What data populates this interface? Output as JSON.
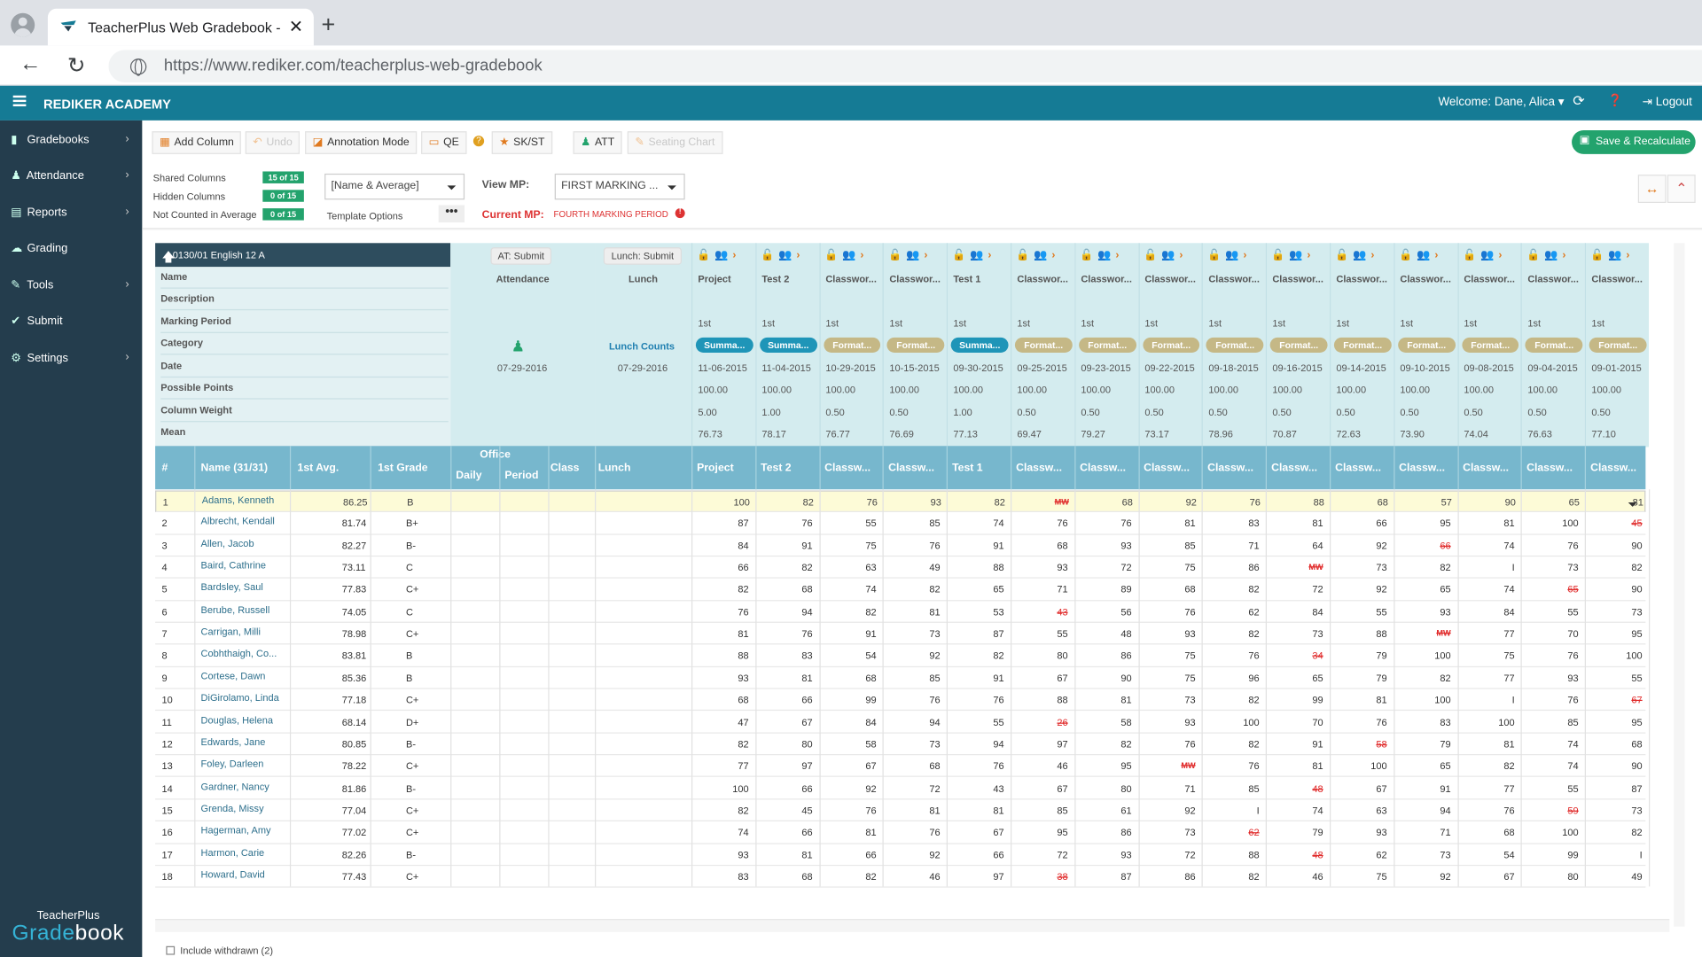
{
  "browser": {
    "tab_title": "TeacherPlus Web Gradebook - O",
    "url_host": "https://www.rediker.com",
    "url_path": "/teacherplus-web-gradebook"
  },
  "header": {
    "brand": "REDIKER ACADEMY",
    "welcome": "Welcome: Dane, Alica",
    "logout": "Logout"
  },
  "sidebar": {
    "items": [
      {
        "label": "Gradebooks",
        "icon": "book-icon"
      },
      {
        "label": "Attendance",
        "icon": "person-icon"
      },
      {
        "label": "Reports",
        "icon": "document-icon"
      },
      {
        "label": "Grading",
        "icon": "cloud-icon"
      },
      {
        "label": "Tools",
        "icon": "wrench-icon"
      },
      {
        "label": "Submit",
        "icon": "check-circle-icon"
      },
      {
        "label": "Settings",
        "icon": "gear-icon"
      }
    ],
    "logo_top": "TeacherPlus",
    "logo_bottom_a": "Grade",
    "logo_bottom_b": "book"
  },
  "toolbar": {
    "add_column": "Add Column",
    "undo": "Undo",
    "annotation": "Annotation Mode",
    "qe": "QE",
    "skst": "SK/ST",
    "att": "ATT",
    "seating": "Seating Chart",
    "save": "Save & Recalculate"
  },
  "options": {
    "shared_label": "Shared Columns",
    "shared_badge": "15 of 15",
    "hidden_label": "Hidden Columns",
    "hidden_badge": "0 of 15",
    "notcounted_label": "Not Counted in Average",
    "notcounted_badge": "0 of 15",
    "name_select": "[Name & Average]",
    "template": "Template Options",
    "view_mp_label": "View MP:",
    "view_mp_value": "FIRST MARKING ...",
    "current_mp_label": "Current MP:",
    "current_mp_value": "FOURTH MARKING PERIOD"
  },
  "course": {
    "title": "0130/01 English 12 A",
    "props": [
      "Name",
      "Description",
      "Marking Period",
      "Category",
      "Date",
      "Possible Points",
      "Column Weight",
      "Mean"
    ]
  },
  "special_cols": {
    "at_submit": "AT: Submit",
    "attendance": "Attendance",
    "att_date": "07-29-2016",
    "lunch_submit": "Lunch: Submit",
    "lunch": "Lunch",
    "lunch_counts": "Lunch Counts",
    "lunch_date": "07-29-2016"
  },
  "columns": [
    {
      "name": "Project",
      "mp": "1st",
      "cat": "Summa...",
      "type": "sum",
      "date": "11-06-2015",
      "pts": "100.00",
      "wt": "5.00",
      "mean": "76.73",
      "th": "Project"
    },
    {
      "name": "Test 2",
      "mp": "1st",
      "cat": "Summa...",
      "type": "sum",
      "date": "11-04-2015",
      "pts": "100.00",
      "wt": "1.00",
      "mean": "78.17",
      "th": "Test 2"
    },
    {
      "name": "Classwor...",
      "mp": "1st",
      "cat": "Format...",
      "type": "for",
      "date": "10-29-2015",
      "pts": "100.00",
      "wt": "0.50",
      "mean": "76.77",
      "th": "Classw..."
    },
    {
      "name": "Classwor...",
      "mp": "1st",
      "cat": "Format...",
      "type": "for",
      "date": "10-15-2015",
      "pts": "100.00",
      "wt": "0.50",
      "mean": "76.69",
      "th": "Classw..."
    },
    {
      "name": "Test 1",
      "mp": "1st",
      "cat": "Summa...",
      "type": "sum",
      "date": "09-30-2015",
      "pts": "100.00",
      "wt": "1.00",
      "mean": "77.13",
      "th": "Test 1"
    },
    {
      "name": "Classwor...",
      "mp": "1st",
      "cat": "Format...",
      "type": "for",
      "date": "09-25-2015",
      "pts": "100.00",
      "wt": "0.50",
      "mean": "69.47",
      "th": "Classw..."
    },
    {
      "name": "Classwor...",
      "mp": "1st",
      "cat": "Format...",
      "type": "for",
      "date": "09-23-2015",
      "pts": "100.00",
      "wt": "0.50",
      "mean": "79.27",
      "th": "Classw..."
    },
    {
      "name": "Classwor...",
      "mp": "1st",
      "cat": "Format...",
      "type": "for",
      "date": "09-22-2015",
      "pts": "100.00",
      "wt": "0.50",
      "mean": "73.17",
      "th": "Classw..."
    },
    {
      "name": "Classwor...",
      "mp": "1st",
      "cat": "Format...",
      "type": "for",
      "date": "09-18-2015",
      "pts": "100.00",
      "wt": "0.50",
      "mean": "78.96",
      "th": "Classw..."
    },
    {
      "name": "Classwor...",
      "mp": "1st",
      "cat": "Format...",
      "type": "for",
      "date": "09-16-2015",
      "pts": "100.00",
      "wt": "0.50",
      "mean": "70.87",
      "th": "Classw..."
    },
    {
      "name": "Classwor...",
      "mp": "1st",
      "cat": "Format...",
      "type": "for",
      "date": "09-14-2015",
      "pts": "100.00",
      "wt": "0.50",
      "mean": "72.63",
      "th": "Classw..."
    },
    {
      "name": "Classwor...",
      "mp": "1st",
      "cat": "Format...",
      "type": "for",
      "date": "09-10-2015",
      "pts": "100.00",
      "wt": "0.50",
      "mean": "73.90",
      "th": "Classw..."
    },
    {
      "name": "Classwor...",
      "mp": "1st",
      "cat": "Format...",
      "type": "for",
      "date": "09-08-2015",
      "pts": "100.00",
      "wt": "0.50",
      "mean": "74.04",
      "th": "Classw..."
    },
    {
      "name": "Classwor...",
      "mp": "1st",
      "cat": "Format...",
      "type": "for",
      "date": "09-04-2015",
      "pts": "100.00",
      "wt": "0.50",
      "mean": "76.63",
      "th": "Classw..."
    },
    {
      "name": "Classwor...",
      "mp": "1st",
      "cat": "Format...",
      "type": "for",
      "date": "09-01-2015",
      "pts": "100.00",
      "wt": "0.50",
      "mean": "77.10",
      "th": "Classw..."
    }
  ],
  "table_headers": {
    "num": "#",
    "name": "Name (31/31)",
    "avg": "1st Avg.",
    "grade": "1st Grade",
    "office": "Office",
    "daily": "Daily",
    "period": "Period",
    "class": "Class",
    "lunch": "Lunch"
  },
  "students": [
    {
      "n": "1",
      "name": "Adams, Kenneth",
      "avg": "86.25",
      "grade": "B",
      "scores": [
        "100",
        "82",
        "76",
        "93",
        "82",
        "MW",
        "68",
        "92",
        "76",
        "88",
        "68",
        "57",
        "90",
        "65",
        "81"
      ]
    },
    {
      "n": "2",
      "name": "Albrecht, Kendall",
      "avg": "81.74",
      "grade": "B+",
      "scores": [
        "87",
        "76",
        "55",
        "85",
        "74",
        "76",
        "76",
        "81",
        "83",
        "81",
        "66",
        "95",
        "81",
        "100",
        "45"
      ]
    },
    {
      "n": "3",
      "name": "Allen, Jacob",
      "avg": "82.27",
      "grade": "B-",
      "scores": [
        "84",
        "91",
        "75",
        "76",
        "91",
        "68",
        "93",
        "85",
        "71",
        "64",
        "92",
        "66",
        "74",
        "76",
        "90"
      ]
    },
    {
      "n": "4",
      "name": "Baird, Cathrine",
      "avg": "73.11",
      "grade": "C",
      "scores": [
        "66",
        "82",
        "63",
        "49",
        "88",
        "93",
        "72",
        "75",
        "86",
        "MW",
        "73",
        "82",
        "I",
        "73",
        "82"
      ]
    },
    {
      "n": "5",
      "name": "Bardsley, Saul",
      "avg": "77.83",
      "grade": "C+",
      "scores": [
        "82",
        "68",
        "74",
        "82",
        "65",
        "71",
        "89",
        "68",
        "82",
        "72",
        "92",
        "65",
        "74",
        "65",
        "90"
      ]
    },
    {
      "n": "6",
      "name": "Berube, Russell",
      "avg": "74.05",
      "grade": "C",
      "scores": [
        "76",
        "94",
        "82",
        "81",
        "53",
        "43",
        "56",
        "76",
        "62",
        "84",
        "55",
        "93",
        "84",
        "55",
        "73"
      ]
    },
    {
      "n": "7",
      "name": "Carrigan, Milli",
      "avg": "78.98",
      "grade": "C+",
      "scores": [
        "81",
        "76",
        "91",
        "73",
        "87",
        "55",
        "48",
        "93",
        "82",
        "73",
        "88",
        "MW",
        "77",
        "70",
        "95"
      ]
    },
    {
      "n": "8",
      "name": "Cobhthaigh, Co...",
      "avg": "83.81",
      "grade": "B",
      "scores": [
        "88",
        "83",
        "54",
        "92",
        "82",
        "80",
        "86",
        "75",
        "76",
        "34",
        "79",
        "100",
        "75",
        "76",
        "100"
      ]
    },
    {
      "n": "9",
      "name": "Cortese, Dawn",
      "avg": "85.36",
      "grade": "B",
      "scores": [
        "93",
        "81",
        "68",
        "85",
        "91",
        "67",
        "90",
        "75",
        "96",
        "65",
        "79",
        "82",
        "77",
        "93",
        "55"
      ]
    },
    {
      "n": "10",
      "name": "DiGirolamo, Linda",
      "avg": "77.18",
      "grade": "C+",
      "scores": [
        "68",
        "66",
        "99",
        "76",
        "76",
        "88",
        "81",
        "73",
        "82",
        "99",
        "81",
        "100",
        "I",
        "76",
        "67"
      ]
    },
    {
      "n": "11",
      "name": "Douglas, Helena",
      "avg": "68.14",
      "grade": "D+",
      "scores": [
        "47",
        "67",
        "84",
        "94",
        "55",
        "26",
        "58",
        "93",
        "100",
        "70",
        "76",
        "83",
        "100",
        "85",
        "95"
      ]
    },
    {
      "n": "12",
      "name": "Edwards, Jane",
      "avg": "80.85",
      "grade": "B-",
      "scores": [
        "82",
        "80",
        "58",
        "73",
        "94",
        "97",
        "82",
        "76",
        "82",
        "91",
        "58",
        "79",
        "81",
        "74",
        "68"
      ]
    },
    {
      "n": "13",
      "name": "Foley, Darleen",
      "avg": "78.22",
      "grade": "C+",
      "scores": [
        "77",
        "97",
        "67",
        "68",
        "76",
        "46",
        "95",
        "MW",
        "76",
        "81",
        "100",
        "65",
        "82",
        "74",
        "90"
      ]
    },
    {
      "n": "14",
      "name": "Gardner, Nancy",
      "avg": "81.86",
      "grade": "B-",
      "scores": [
        "100",
        "66",
        "92",
        "72",
        "43",
        "67",
        "80",
        "71",
        "85",
        "48",
        "67",
        "91",
        "77",
        "55",
        "87"
      ]
    },
    {
      "n": "15",
      "name": "Grenda, Missy",
      "avg": "77.04",
      "grade": "C+",
      "scores": [
        "82",
        "45",
        "76",
        "81",
        "81",
        "85",
        "61",
        "92",
        "I",
        "74",
        "63",
        "94",
        "76",
        "59",
        "73"
      ]
    },
    {
      "n": "16",
      "name": "Hagerman, Amy",
      "avg": "77.02",
      "grade": "C+",
      "scores": [
        "74",
        "66",
        "81",
        "76",
        "67",
        "95",
        "86",
        "73",
        "62",
        "79",
        "93",
        "71",
        "68",
        "100",
        "82"
      ]
    },
    {
      "n": "17",
      "name": "Harmon, Carie",
      "avg": "82.26",
      "grade": "B-",
      "scores": [
        "93",
        "81",
        "66",
        "92",
        "66",
        "72",
        "93",
        "72",
        "88",
        "48",
        "62",
        "73",
        "54",
        "99",
        "I"
      ]
    },
    {
      "n": "18",
      "name": "Howard, David",
      "avg": "77.43",
      "grade": "C+",
      "scores": [
        "83",
        "68",
        "82",
        "46",
        "97",
        "38",
        "87",
        "86",
        "82",
        "46",
        "75",
        "92",
        "67",
        "80",
        "49"
      ]
    }
  ],
  "red_cells": [
    [
      0,
      5
    ],
    [
      1,
      14
    ],
    [
      2,
      11
    ],
    [
      3,
      9
    ],
    [
      4,
      13
    ],
    [
      5,
      5
    ],
    [
      6,
      11
    ],
    [
      7,
      9
    ],
    [
      9,
      14
    ],
    [
      10,
      5
    ],
    [
      11,
      10
    ],
    [
      12,
      7
    ],
    [
      13,
      9
    ],
    [
      14,
      13
    ],
    [
      15,
      8
    ],
    [
      16,
      9
    ],
    [
      17,
      5
    ]
  ],
  "footer": {
    "withdrawn": "Include withdrawn (2)"
  },
  "colors": {
    "header_bar": "#157b95",
    "sidebar": "#243d4d",
    "grid_header": "#77b7cd",
    "save": "#23a36d",
    "summative": "#1f95b8",
    "formative": "#c5b886"
  }
}
